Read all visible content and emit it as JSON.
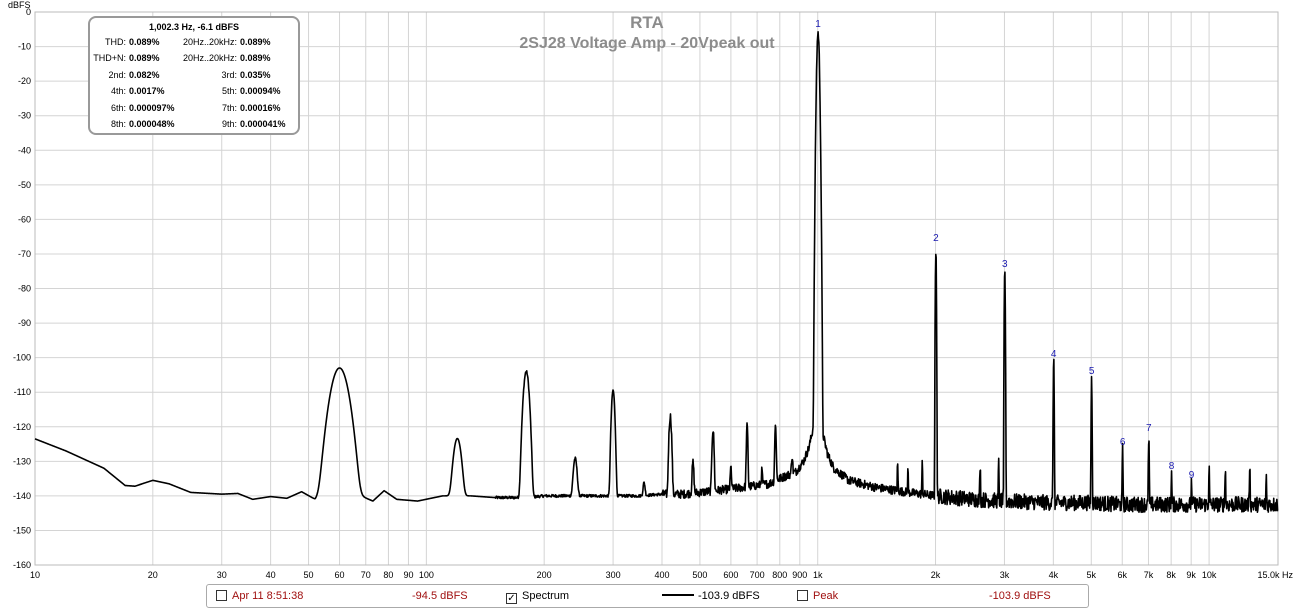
{
  "chart_data": {
    "type": "line",
    "title": "RTA",
    "subtitle": "2SJ28 Voltage Amp - 20Vpeak out",
    "ylabel": "dBFS",
    "xunit": "Hz",
    "xscale": "log",
    "xlim": [
      10,
      15000
    ],
    "ylim": [
      -160,
      0
    ],
    "grid": true,
    "y_ticks": [
      "0",
      "-10",
      "-20",
      "-30",
      "-40",
      "-50",
      "-60",
      "-70",
      "-80",
      "-90",
      "-100",
      "-110",
      "-120",
      "-130",
      "-140",
      "-150",
      "-160"
    ],
    "x_ticks": [
      {
        "value": 10,
        "label": "10"
      },
      {
        "value": 20,
        "label": "20"
      },
      {
        "value": 30,
        "label": "30"
      },
      {
        "value": 40,
        "label": "40"
      },
      {
        "value": 50,
        "label": "50"
      },
      {
        "value": 60,
        "label": "60"
      },
      {
        "value": 70,
        "label": "70"
      },
      {
        "value": 80,
        "label": "80"
      },
      {
        "value": 90,
        "label": "90"
      },
      {
        "value": 100,
        "label": "100"
      },
      {
        "value": 200,
        "label": "200"
      },
      {
        "value": 300,
        "label": "300"
      },
      {
        "value": 400,
        "label": "400"
      },
      {
        "value": 500,
        "label": "500"
      },
      {
        "value": 600,
        "label": "600"
      },
      {
        "value": 700,
        "label": "700"
      },
      {
        "value": 800,
        "label": "800"
      },
      {
        "value": 900,
        "label": "900"
      },
      {
        "value": 1000,
        "label": "1k"
      },
      {
        "value": 2000,
        "label": "2k"
      },
      {
        "value": 3000,
        "label": "3k"
      },
      {
        "value": 4000,
        "label": "4k"
      },
      {
        "value": 5000,
        "label": "5k"
      },
      {
        "value": 6000,
        "label": "6k"
      },
      {
        "value": 7000,
        "label": "7k"
      },
      {
        "value": 8000,
        "label": "8k"
      },
      {
        "value": 9000,
        "label": "9k"
      },
      {
        "value": 10000,
        "label": "10k"
      },
      {
        "value": 15000,
        "label": "15.0k Hz"
      }
    ],
    "harmonic_markers": [
      {
        "label": "1",
        "x": 1002,
        "y": -6.1
      },
      {
        "label": "2",
        "x": 2004,
        "y": -68
      },
      {
        "label": "3",
        "x": 3006,
        "y": -75.5
      },
      {
        "label": "4",
        "x": 4008,
        "y": -101.5
      },
      {
        "label": "5",
        "x": 5010,
        "y": -106.5
      },
      {
        "label": "6",
        "x": 6012,
        "y": -127
      },
      {
        "label": "7",
        "x": 7014,
        "y": -123
      },
      {
        "label": "8",
        "x": 8016,
        "y": -134
      },
      {
        "label": "9",
        "x": 9018,
        "y": -136.5
      }
    ],
    "series": [
      {
        "noise_floor": [
          [
            10,
            -123.5
          ],
          [
            12,
            -127
          ],
          [
            15,
            -132
          ],
          [
            17,
            -137
          ],
          [
            18,
            -137.2
          ],
          [
            20,
            -135.5
          ],
          [
            22,
            -136.5
          ],
          [
            25,
            -139
          ],
          [
            30,
            -139.5
          ],
          [
            33,
            -139.3
          ],
          [
            36,
            -141
          ],
          [
            40,
            -140.2
          ],
          [
            44,
            -140.7
          ],
          [
            48,
            -138.8
          ],
          [
            52,
            -141
          ],
          [
            55,
            -138
          ],
          [
            60,
            -140
          ],
          [
            64,
            -141
          ],
          [
            68,
            -140
          ],
          [
            73,
            -141.5
          ],
          [
            78,
            -138.5
          ],
          [
            84,
            -141
          ],
          [
            95,
            -141.5
          ],
          [
            110,
            -140
          ],
          [
            130,
            -140
          ],
          [
            150,
            -140.5
          ],
          [
            180,
            -140.5
          ],
          [
            200,
            -140
          ],
          [
            250,
            -140
          ],
          [
            300,
            -140
          ],
          [
            350,
            -140
          ],
          [
            400,
            -139.5
          ],
          [
            450,
            -139.5
          ],
          [
            500,
            -139
          ],
          [
            600,
            -138
          ],
          [
            700,
            -137
          ],
          [
            750,
            -136.5
          ],
          [
            800,
            -135
          ],
          [
            880,
            -133
          ],
          [
            920,
            -130
          ],
          [
            950,
            -126
          ],
          [
            975,
            -120
          ],
          [
            990,
            -110
          ],
          [
            1015,
            -110
          ],
          [
            1030,
            -122
          ],
          [
            1060,
            -128
          ],
          [
            1100,
            -132
          ],
          [
            1200,
            -135.5
          ],
          [
            1400,
            -137.5
          ],
          [
            1700,
            -139
          ],
          [
            2000,
            -140
          ],
          [
            2500,
            -141
          ],
          [
            3000,
            -141.5
          ],
          [
            4000,
            -142
          ],
          [
            5000,
            -142
          ],
          [
            6000,
            -142.5
          ],
          [
            8000,
            -142.5
          ],
          [
            10000,
            -142.5
          ],
          [
            15000,
            -142.5
          ]
        ],
        "peaks": [
          [
            60,
            -103,
            0.03
          ],
          [
            120,
            -123.5,
            0.015
          ],
          [
            180,
            -104,
            0.01
          ],
          [
            240,
            -129.5,
            0.008
          ],
          [
            300,
            -109.5,
            0.006
          ],
          [
            360,
            -138.5,
            0.005
          ],
          [
            420,
            -117,
            0.005
          ],
          [
            480,
            -131,
            0.004
          ],
          [
            540,
            -121,
            0.004
          ],
          [
            600,
            -133,
            0.003
          ],
          [
            660,
            -120,
            0.003
          ],
          [
            720,
            -135,
            0.003
          ],
          [
            780,
            -120,
            0.003
          ],
          [
            860,
            -130,
            0.003
          ],
          [
            1002,
            -6.1,
            0.004
          ],
          [
            2004,
            -68,
            0.0015
          ],
          [
            3006,
            -75.5,
            0.0015
          ],
          [
            4008,
            -101.5,
            0.0015
          ],
          [
            5010,
            -106.5,
            0.0015
          ],
          [
            6012,
            -127,
            0.0015
          ],
          [
            7014,
            -123,
            0.0015
          ],
          [
            8016,
            -134,
            0.0015
          ],
          [
            9018,
            -136.5,
            0.0015
          ],
          [
            10000,
            -132.5,
            0.0015
          ],
          [
            11000,
            -132,
            0.0015
          ],
          [
            12700,
            -131,
            0.0015
          ],
          [
            14000,
            -135,
            0.0015
          ],
          [
            1850,
            -131,
            0.0015
          ],
          [
            2600,
            -131,
            0.0015
          ],
          [
            2900,
            -131,
            0.0015
          ],
          [
            1600,
            -131,
            0.0015
          ],
          [
            1700,
            -133,
            0.0015
          ]
        ]
      }
    ]
  },
  "readout": {
    "header": "1,002.3 Hz, -6.1 dBFS",
    "rows": [
      [
        {
          "label": "THD:",
          "value": "0.089%"
        },
        {
          "label": "20Hz..20kHz:",
          "value": "0.089%"
        }
      ],
      [
        {
          "label": "THD+N:",
          "value": "0.089%"
        },
        {
          "label": "20Hz..20kHz:",
          "value": "0.089%"
        }
      ],
      [
        {
          "label": "2nd:",
          "value": "0.082%"
        },
        {
          "label": "3rd:",
          "value": "0.035%"
        }
      ],
      [
        {
          "label": "4th:",
          "value": "0.0017%"
        },
        {
          "label": "5th:",
          "value": "0.00094%"
        }
      ],
      [
        {
          "label": "6th:",
          "value": "0.000097%"
        },
        {
          "label": "7th:",
          "value": "0.00016%"
        }
      ],
      [
        {
          "label": "8th:",
          "value": "0.000048%"
        },
        {
          "label": "9th:",
          "value": "0.000041%"
        }
      ]
    ]
  },
  "statusbar": {
    "timestamp": "Apr 11 8:51:38",
    "timestamp_checked": false,
    "timestamp_level": "-94.5 dBFS",
    "spectrum_label": "Spectrum",
    "spectrum_checked": true,
    "spectrum_level": "-103.9 dBFS",
    "peak_label": "Peak",
    "peak_checked": false,
    "peak_level": "-103.9 dBFS"
  },
  "colors": {
    "trace": "#000000",
    "grid": "#d4d4d4",
    "marker": "#1a1ab0",
    "title": "#8c8c8c",
    "status_red": "#a01010"
  }
}
